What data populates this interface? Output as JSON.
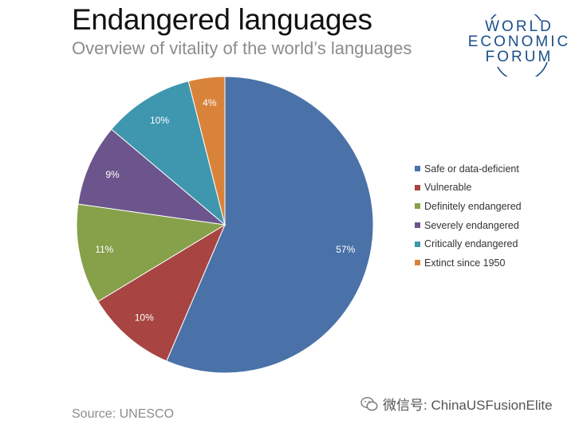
{
  "header": {
    "title": "Endangered languages",
    "subtitle": "Overview of vitality of the world’s languages"
  },
  "logo": {
    "line1": "WORLD",
    "line2": "ECONOMIC",
    "line3": "FORUM",
    "color": "#1a4f8a"
  },
  "chart_data": {
    "type": "pie",
    "title": "Endangered languages",
    "subtitle": "Overview of vitality of the world’s languages",
    "slices": [
      {
        "label": "Safe or data-deficient",
        "value": 57,
        "display": "57%",
        "color": "#4a72a8"
      },
      {
        "label": "Vulnerable",
        "value": 10,
        "display": "10%",
        "color": "#a84442"
      },
      {
        "label": "Definitely endangered",
        "value": 11,
        "display": "11%",
        "color": "#87a04a"
      },
      {
        "label": "Severely endangered",
        "value": 9,
        "display": "9%",
        "color": "#6c558c"
      },
      {
        "label": "Critically endangered",
        "value": 10,
        "display": "10%",
        "color": "#3e97ae"
      },
      {
        "label": "Extinct since 1950",
        "value": 4,
        "display": "4%",
        "color": "#d9833a"
      }
    ],
    "legend_position": "right"
  },
  "footer": {
    "source": "Source: UNESCO"
  },
  "watermark": {
    "text": "微信号: ChinaUSFusionElite",
    "icon": "wechat-icon"
  }
}
